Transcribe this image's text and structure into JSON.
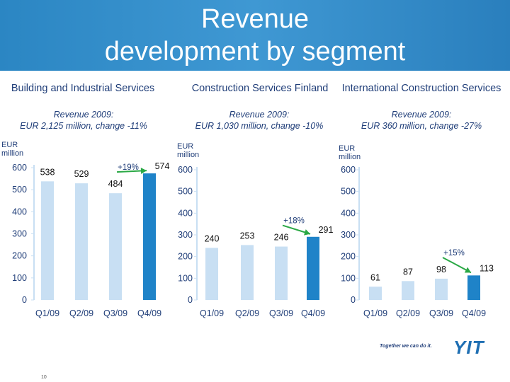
{
  "header": {
    "title_line1": "Revenue",
    "title_line2": "development by segment"
  },
  "segments": [
    {
      "name": "Building and Industrial Services",
      "revenue": "Revenue 2009:",
      "revenue_detail": "EUR 2,125 million, change -11%"
    },
    {
      "name": "Construction Services Finland",
      "revenue": "Revenue 2009:",
      "revenue_detail": "EUR 1,030 million, change -10%"
    },
    {
      "name": "International Construction Services",
      "revenue": "Revenue 2009:",
      "revenue_detail": "EUR 360 million, change -27%"
    }
  ],
  "chart_data": [
    {
      "type": "bar",
      "ylabel": "EUR million",
      "categories": [
        "Q1/09",
        "Q2/09",
        "Q3/09",
        "Q4/09"
      ],
      "values": [
        538,
        529,
        484,
        574
      ],
      "ylim": [
        0,
        600
      ],
      "yticks": [
        0,
        100,
        200,
        300,
        400,
        500,
        600
      ],
      "bar_colors": [
        "#c8dff3",
        "#c8dff3",
        "#c8dff3",
        "#1f83c8"
      ],
      "annotation": {
        "text": "+19%",
        "from": 2,
        "to": 3
      }
    },
    {
      "type": "bar",
      "ylabel": "EUR million",
      "categories": [
        "Q1/09",
        "Q2/09",
        "Q3/09",
        "Q4/09"
      ],
      "values": [
        240,
        253,
        246,
        291
      ],
      "ylim": [
        0,
        600
      ],
      "yticks": [
        0,
        100,
        200,
        300,
        400,
        500,
        600
      ],
      "bar_colors": [
        "#c8dff3",
        "#c8dff3",
        "#c8dff3",
        "#1f83c8"
      ],
      "annotation": {
        "text": "+18%",
        "from": 2,
        "to": 3
      }
    },
    {
      "type": "bar",
      "ylabel": "EUR million",
      "categories": [
        "Q1/09",
        "Q2/09",
        "Q3/09",
        "Q4/09"
      ],
      "values": [
        61,
        87,
        98,
        113
      ],
      "ylim": [
        0,
        600
      ],
      "yticks": [
        0,
        100,
        200,
        300,
        400,
        500,
        600
      ],
      "bar_colors": [
        "#c8dff3",
        "#c8dff3",
        "#c8dff3",
        "#1f83c8"
      ],
      "annotation": {
        "text": "+15%",
        "from": 2,
        "to": 3
      }
    }
  ],
  "footer": {
    "tagline": "Together we can do it.",
    "logo": "YIT",
    "page_number": "10"
  }
}
